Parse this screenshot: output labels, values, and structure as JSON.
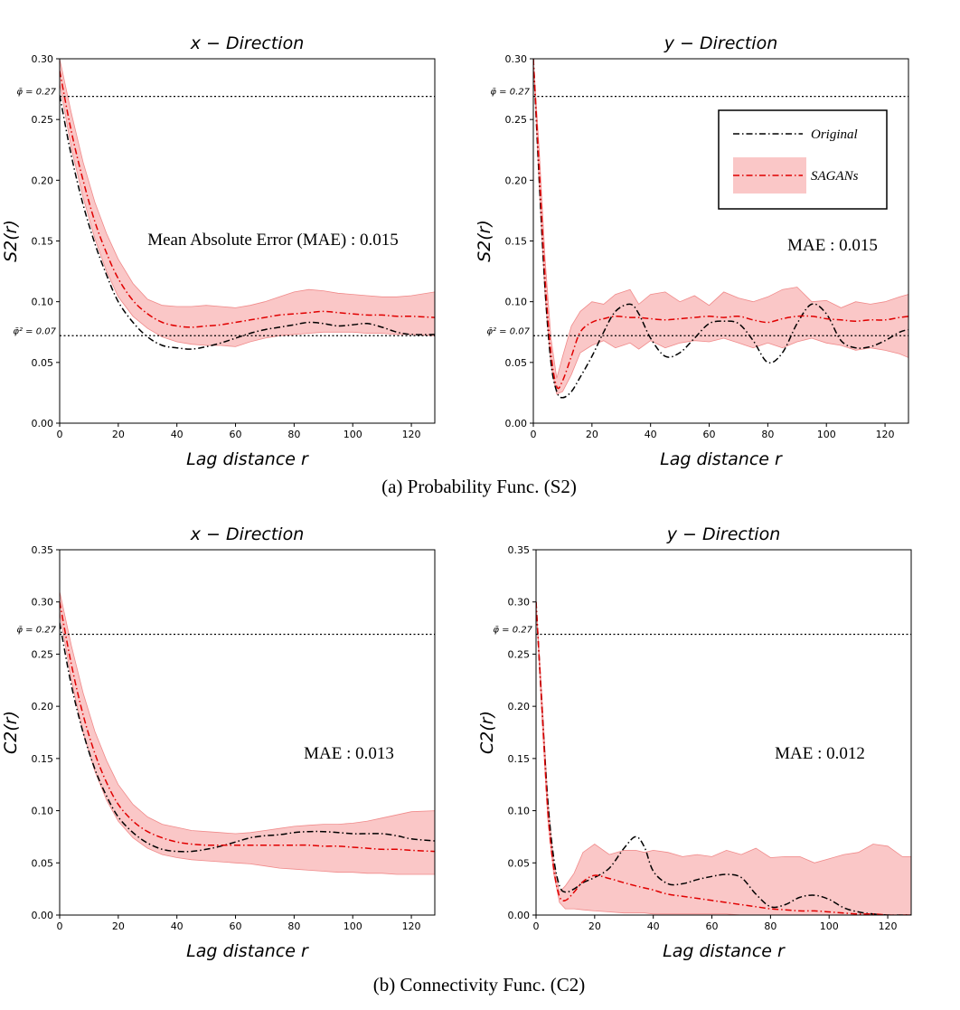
{
  "chart_data": [
    {
      "type": "line",
      "title": "x − Direction",
      "xlabel": "Lag  distance  r",
      "ylabel": "S2(r)",
      "xlim": [
        0,
        128
      ],
      "ylim": [
        0,
        0.3
      ],
      "xticks": [
        "0",
        "20",
        "40",
        "60",
        "80",
        "100",
        "120"
      ],
      "yticks": [
        "0.00",
        "0.05",
        "0.10",
        "0.15",
        "0.20",
        "0.25",
        "0.30"
      ],
      "reference_lines": [
        {
          "value": 0.269,
          "label": "φ̄ = 0.27"
        },
        {
          "value": 0.072,
          "label": "φ̄² = 0.07"
        }
      ],
      "annotation": "Mean Absolute Error (MAE) : 0.015",
      "x": [
        0,
        4,
        8,
        12,
        16,
        20,
        25,
        30,
        35,
        40,
        45,
        50,
        55,
        60,
        65,
        70,
        75,
        80,
        85,
        90,
        95,
        100,
        105,
        110,
        115,
        120,
        128
      ],
      "series": [
        {
          "name": "Original",
          "values": [
            0.27,
            0.22,
            0.18,
            0.148,
            0.122,
            0.1,
            0.083,
            0.071,
            0.064,
            0.062,
            0.061,
            0.063,
            0.066,
            0.07,
            0.074,
            0.077,
            0.079,
            0.081,
            0.083,
            0.082,
            0.08,
            0.081,
            0.082,
            0.079,
            0.075,
            0.073,
            0.073
          ]
        },
        {
          "name": "SAGANs",
          "values": [
            0.29,
            0.24,
            0.2,
            0.166,
            0.14,
            0.119,
            0.101,
            0.09,
            0.083,
            0.08,
            0.079,
            0.08,
            0.081,
            0.083,
            0.085,
            0.087,
            0.089,
            0.09,
            0.091,
            0.092,
            0.091,
            0.09,
            0.089,
            0.089,
            0.088,
            0.088,
            0.087
          ]
        },
        {
          "name": "SAGANs band upper",
          "values": [
            0.3,
            0.255,
            0.215,
            0.182,
            0.156,
            0.135,
            0.115,
            0.102,
            0.097,
            0.096,
            0.096,
            0.097,
            0.096,
            0.095,
            0.097,
            0.1,
            0.104,
            0.108,
            0.11,
            0.109,
            0.107,
            0.106,
            0.105,
            0.104,
            0.104,
            0.105,
            0.108
          ]
        },
        {
          "name": "SAGANs band lower",
          "values": [
            0.28,
            0.226,
            0.186,
            0.152,
            0.125,
            0.104,
            0.088,
            0.078,
            0.071,
            0.067,
            0.065,
            0.064,
            0.064,
            0.063,
            0.067,
            0.07,
            0.072,
            0.073,
            0.074,
            0.075,
            0.075,
            0.075,
            0.074,
            0.074,
            0.073,
            0.073,
            0.072
          ]
        }
      ]
    },
    {
      "type": "line",
      "title": "y − Direction",
      "xlabel": "Lag  distance  r",
      "ylabel": "S2(r)",
      "xlim": [
        0,
        128
      ],
      "ylim": [
        0,
        0.3
      ],
      "xticks": [
        "0",
        "20",
        "40",
        "60",
        "80",
        "100",
        "120"
      ],
      "yticks": [
        "0.00",
        "0.05",
        "0.10",
        "0.15",
        "0.20",
        "0.25",
        "0.30"
      ],
      "reference_lines": [
        {
          "value": 0.269,
          "label": "φ̄ = 0.27"
        },
        {
          "value": 0.072,
          "label": "φ̄² = 0.07"
        }
      ],
      "annotation": "MAE : 0.015",
      "legend": {
        "placement": "top-right",
        "entries": [
          "Original",
          "SAGANs"
        ]
      },
      "x": [
        0,
        2,
        4,
        6,
        8,
        10,
        13,
        16,
        20,
        24,
        28,
        33,
        36,
        40,
        45,
        50,
        55,
        60,
        65,
        70,
        75,
        80,
        85,
        90,
        95,
        100,
        105,
        110,
        115,
        120,
        125,
        128
      ],
      "series": [
        {
          "name": "Original",
          "values": [
            0.3,
            0.2,
            0.11,
            0.05,
            0.026,
            0.021,
            0.026,
            0.038,
            0.055,
            0.075,
            0.092,
            0.098,
            0.09,
            0.07,
            0.055,
            0.058,
            0.07,
            0.082,
            0.084,
            0.082,
            0.068,
            0.05,
            0.058,
            0.082,
            0.098,
            0.09,
            0.068,
            0.062,
            0.063,
            0.068,
            0.075,
            0.077
          ]
        },
        {
          "name": "SAGANs",
          "values": [
            0.3,
            0.21,
            0.12,
            0.058,
            0.03,
            0.035,
            0.055,
            0.075,
            0.083,
            0.086,
            0.088,
            0.087,
            0.087,
            0.086,
            0.085,
            0.086,
            0.087,
            0.088,
            0.087,
            0.088,
            0.085,
            0.083,
            0.086,
            0.088,
            0.088,
            0.086,
            0.085,
            0.084,
            0.085,
            0.085,
            0.087,
            0.088
          ]
        },
        {
          "name": "SAGANs band upper",
          "values": [
            0.3,
            0.225,
            0.135,
            0.07,
            0.037,
            0.055,
            0.08,
            0.092,
            0.1,
            0.098,
            0.106,
            0.11,
            0.098,
            0.106,
            0.108,
            0.1,
            0.105,
            0.097,
            0.108,
            0.103,
            0.1,
            0.104,
            0.11,
            0.112,
            0.1,
            0.101,
            0.095,
            0.1,
            0.098,
            0.1,
            0.104,
            0.106
          ]
        },
        {
          "name": "SAGANs band lower",
          "values": [
            0.3,
            0.195,
            0.105,
            0.048,
            0.024,
            0.026,
            0.04,
            0.058,
            0.064,
            0.068,
            0.062,
            0.066,
            0.061,
            0.068,
            0.062,
            0.066,
            0.068,
            0.067,
            0.07,
            0.066,
            0.062,
            0.066,
            0.062,
            0.067,
            0.07,
            0.066,
            0.064,
            0.06,
            0.062,
            0.06,
            0.057,
            0.054
          ]
        }
      ]
    },
    {
      "type": "line",
      "title": "x − Direction",
      "xlabel": "Lag  distance  r",
      "ylabel": "C2(r)",
      "xlim": [
        0,
        128
      ],
      "ylim": [
        0,
        0.35
      ],
      "xticks": [
        "0",
        "20",
        "40",
        "60",
        "80",
        "100",
        "120"
      ],
      "yticks": [
        "0.00",
        "0.05",
        "0.10",
        "0.15",
        "0.20",
        "0.25",
        "0.30",
        "0.35"
      ],
      "reference_lines": [
        {
          "value": 0.269,
          "label": "φ̄ = 0.27"
        }
      ],
      "annotation": "MAE : 0.013",
      "x": [
        0,
        4,
        8,
        12,
        16,
        20,
        25,
        30,
        35,
        40,
        45,
        50,
        55,
        60,
        65,
        70,
        75,
        80,
        85,
        90,
        95,
        100,
        105,
        110,
        115,
        120,
        128
      ],
      "series": [
        {
          "name": "Original",
          "values": [
            0.28,
            0.22,
            0.175,
            0.14,
            0.114,
            0.094,
            0.079,
            0.069,
            0.063,
            0.061,
            0.061,
            0.063,
            0.066,
            0.07,
            0.074,
            0.076,
            0.077,
            0.079,
            0.08,
            0.08,
            0.079,
            0.078,
            0.078,
            0.078,
            0.076,
            0.073,
            0.071
          ]
        },
        {
          "name": "SAGANs",
          "values": [
            0.3,
            0.24,
            0.192,
            0.155,
            0.127,
            0.106,
            0.09,
            0.08,
            0.074,
            0.07,
            0.068,
            0.067,
            0.067,
            0.067,
            0.067,
            0.067,
            0.067,
            0.067,
            0.067,
            0.066,
            0.066,
            0.065,
            0.064,
            0.063,
            0.063,
            0.062,
            0.061
          ]
        },
        {
          "name": "SAGANs band upper",
          "values": [
            0.31,
            0.258,
            0.213,
            0.176,
            0.148,
            0.125,
            0.106,
            0.094,
            0.087,
            0.084,
            0.081,
            0.08,
            0.079,
            0.078,
            0.079,
            0.081,
            0.083,
            0.085,
            0.086,
            0.087,
            0.087,
            0.088,
            0.09,
            0.093,
            0.096,
            0.099,
            0.1
          ]
        },
        {
          "name": "SAGANs band lower",
          "values": [
            0.29,
            0.225,
            0.175,
            0.138,
            0.11,
            0.09,
            0.074,
            0.064,
            0.058,
            0.055,
            0.053,
            0.052,
            0.051,
            0.05,
            0.049,
            0.047,
            0.045,
            0.044,
            0.043,
            0.042,
            0.041,
            0.041,
            0.04,
            0.04,
            0.039,
            0.039,
            0.039
          ]
        }
      ]
    },
    {
      "type": "line",
      "title": "y − Direction",
      "xlabel": "Lag  distance  r",
      "ylabel": "C2(r)",
      "xlim": [
        0,
        128
      ],
      "ylim": [
        0,
        0.35
      ],
      "xticks": [
        "0",
        "20",
        "40",
        "60",
        "80",
        "100",
        "120"
      ],
      "yticks": [
        "0.00",
        "0.05",
        "0.10",
        "0.15",
        "0.20",
        "0.25",
        "0.30",
        "0.35"
      ],
      "reference_lines": [
        {
          "value": 0.269,
          "label": "φ̄ = 0.27"
        }
      ],
      "annotation": "MAE : 0.012",
      "x": [
        0,
        2,
        4,
        6,
        8,
        10,
        13,
        16,
        20,
        25,
        30,
        34,
        37,
        40,
        45,
        50,
        55,
        60,
        65,
        70,
        75,
        80,
        85,
        90,
        95,
        100,
        105,
        110,
        115,
        120,
        125,
        128
      ],
      "series": [
        {
          "name": "Original",
          "values": [
            0.3,
            0.2,
            0.11,
            0.055,
            0.028,
            0.022,
            0.025,
            0.031,
            0.036,
            0.045,
            0.064,
            0.075,
            0.065,
            0.042,
            0.03,
            0.03,
            0.034,
            0.037,
            0.039,
            0.036,
            0.02,
            0.008,
            0.01,
            0.017,
            0.019,
            0.015,
            0.007,
            0.003,
            0.001,
            0.0,
            0.0,
            0.0
          ]
        },
        {
          "name": "SAGANs",
          "values": [
            0.3,
            0.2,
            0.1,
            0.045,
            0.018,
            0.014,
            0.022,
            0.032,
            0.038,
            0.035,
            0.031,
            0.028,
            0.026,
            0.024,
            0.02,
            0.018,
            0.016,
            0.014,
            0.012,
            0.01,
            0.008,
            0.006,
            0.005,
            0.004,
            0.004,
            0.003,
            0.002,
            0.001,
            0.001,
            0.0,
            0.0,
            0.0
          ]
        },
        {
          "name": "SAGANs band upper",
          "values": [
            0.3,
            0.21,
            0.11,
            0.05,
            0.022,
            0.028,
            0.04,
            0.06,
            0.068,
            0.058,
            0.062,
            0.062,
            0.06,
            0.062,
            0.06,
            0.056,
            0.058,
            0.056,
            0.062,
            0.058,
            0.064,
            0.055,
            0.056,
            0.056,
            0.05,
            0.054,
            0.058,
            0.06,
            0.068,
            0.066,
            0.056,
            0.056
          ]
        },
        {
          "name": "SAGANs band lower",
          "values": [
            0.3,
            0.19,
            0.092,
            0.04,
            0.012,
            0.006,
            0.006,
            0.005,
            0.004,
            0.003,
            0.002,
            0.002,
            0.002,
            0.001,
            0.001,
            0.001,
            0.001,
            0.001,
            0.001,
            0.0,
            0.0,
            0.0,
            0.0,
            0.0,
            0.0,
            0.0,
            0.0,
            0.0,
            0.0,
            0.0,
            0.0,
            0.0
          ]
        }
      ]
    }
  ],
  "captions": {
    "a": "(a) Probability Func. (S2)",
    "b": "(b) Connectivity Func. (C2)"
  },
  "colors": {
    "original": "#000000",
    "sagans": "#e00000",
    "band": "#f8b4b4"
  }
}
